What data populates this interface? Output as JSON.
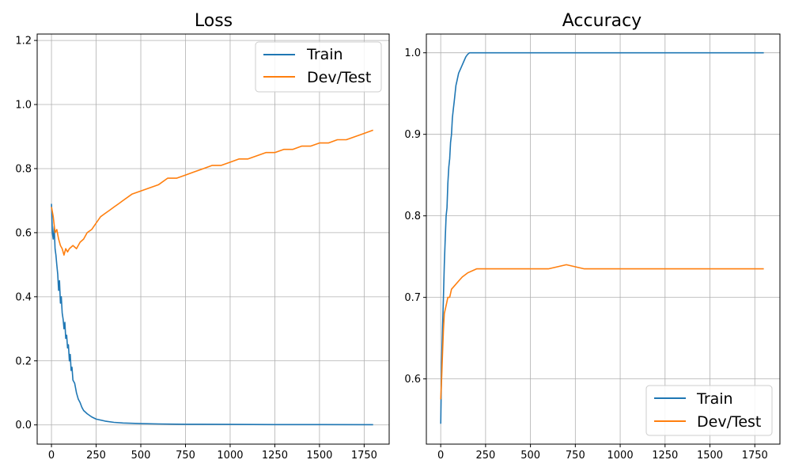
{
  "colors": {
    "train": "#1f77b4",
    "dev_test": "#ff7f0e",
    "grid": "#b0b0b0",
    "frame": "#000000"
  },
  "chart_data": [
    {
      "type": "line",
      "title": "Loss",
      "xlabel": "",
      "ylabel": "",
      "xlim": [
        -80,
        1890
      ],
      "ylim": [
        -0.06,
        1.22
      ],
      "xticks": [
        0,
        250,
        500,
        750,
        1000,
        1250,
        1500,
        1750
      ],
      "xtick_labels": [
        "0",
        "250",
        "500",
        "750",
        "1000",
        "1250",
        "1500",
        "1750"
      ],
      "yticks": [
        0.0,
        0.2,
        0.4,
        0.6,
        0.8,
        1.0,
        1.2
      ],
      "ytick_labels": [
        "0.0",
        "0.2",
        "0.4",
        "0.6",
        "0.8",
        "1.0",
        "1.2"
      ],
      "grid": true,
      "legend_position": "top-right",
      "series": [
        {
          "name": "Train",
          "color": "#1f77b4",
          "points": [
            [
              0,
              0.69
            ],
            [
              5,
              0.6
            ],
            [
              10,
              0.58
            ],
            [
              15,
              0.62
            ],
            [
              20,
              0.55
            ],
            [
              25,
              0.53
            ],
            [
              30,
              0.5
            ],
            [
              35,
              0.47
            ],
            [
              40,
              0.42
            ],
            [
              45,
              0.45
            ],
            [
              50,
              0.38
            ],
            [
              55,
              0.4
            ],
            [
              60,
              0.35
            ],
            [
              65,
              0.33
            ],
            [
              70,
              0.3
            ],
            [
              75,
              0.32
            ],
            [
              80,
              0.27
            ],
            [
              85,
              0.28
            ],
            [
              90,
              0.24
            ],
            [
              95,
              0.25
            ],
            [
              100,
              0.2
            ],
            [
              105,
              0.22
            ],
            [
              110,
              0.17
            ],
            [
              115,
              0.18
            ],
            [
              120,
              0.14
            ],
            [
              130,
              0.13
            ],
            [
              140,
              0.1
            ],
            [
              150,
              0.08
            ],
            [
              160,
              0.07
            ],
            [
              170,
              0.055
            ],
            [
              180,
              0.045
            ],
            [
              200,
              0.035
            ],
            [
              225,
              0.025
            ],
            [
              250,
              0.018
            ],
            [
              300,
              0.012
            ],
            [
              350,
              0.008
            ],
            [
              400,
              0.006
            ],
            [
              500,
              0.004
            ],
            [
              600,
              0.003
            ],
            [
              750,
              0.002
            ],
            [
              1000,
              0.0015
            ],
            [
              1250,
              0.001
            ],
            [
              1500,
              0.001
            ],
            [
              1800,
              0.0008
            ]
          ]
        },
        {
          "name": "Dev/Test",
          "color": "#ff7f0e",
          "points": [
            [
              0,
              0.68
            ],
            [
              10,
              0.65
            ],
            [
              20,
              0.6
            ],
            [
              30,
              0.61
            ],
            [
              40,
              0.58
            ],
            [
              50,
              0.56
            ],
            [
              60,
              0.55
            ],
            [
              70,
              0.53
            ],
            [
              80,
              0.55
            ],
            [
              90,
              0.54
            ],
            [
              100,
              0.55
            ],
            [
              120,
              0.56
            ],
            [
              140,
              0.55
            ],
            [
              160,
              0.57
            ],
            [
              180,
              0.58
            ],
            [
              200,
              0.6
            ],
            [
              225,
              0.61
            ],
            [
              250,
              0.63
            ],
            [
              275,
              0.65
            ],
            [
              300,
              0.66
            ],
            [
              325,
              0.67
            ],
            [
              350,
              0.68
            ],
            [
              375,
              0.69
            ],
            [
              400,
              0.7
            ],
            [
              450,
              0.72
            ],
            [
              500,
              0.73
            ],
            [
              550,
              0.74
            ],
            [
              600,
              0.75
            ],
            [
              650,
              0.77
            ],
            [
              700,
              0.77
            ],
            [
              750,
              0.78
            ],
            [
              800,
              0.79
            ],
            [
              850,
              0.8
            ],
            [
              900,
              0.81
            ],
            [
              950,
              0.81
            ],
            [
              1000,
              0.82
            ],
            [
              1050,
              0.83
            ],
            [
              1100,
              0.83
            ],
            [
              1150,
              0.84
            ],
            [
              1200,
              0.85
            ],
            [
              1250,
              0.85
            ],
            [
              1300,
              0.86
            ],
            [
              1350,
              0.86
            ],
            [
              1400,
              0.87
            ],
            [
              1450,
              0.87
            ],
            [
              1500,
              0.88
            ],
            [
              1550,
              0.88
            ],
            [
              1600,
              0.89
            ],
            [
              1650,
              0.89
            ],
            [
              1700,
              0.9
            ],
            [
              1750,
              0.91
            ],
            [
              1800,
              0.92
            ]
          ]
        }
      ]
    },
    {
      "type": "line",
      "title": "Accuracy",
      "xlabel": "",
      "ylabel": "",
      "xlim": [
        -80,
        1890
      ],
      "ylim": [
        0.52,
        1.023
      ],
      "xticks": [
        0,
        250,
        500,
        750,
        1000,
        1250,
        1500,
        1750
      ],
      "xtick_labels": [
        "0",
        "250",
        "500",
        "750",
        "1000",
        "1250",
        "1500",
        "1750"
      ],
      "yticks": [
        0.6,
        0.7,
        0.8,
        0.9,
        1.0
      ],
      "ytick_labels": [
        "0.6",
        "0.7",
        "0.8",
        "0.9",
        "1.0"
      ],
      "grid": true,
      "legend_position": "bottom-right",
      "series": [
        {
          "name": "Train",
          "color": "#1f77b4",
          "points": [
            [
              0,
              0.545
            ],
            [
              5,
              0.62
            ],
            [
              10,
              0.66
            ],
            [
              15,
              0.7
            ],
            [
              20,
              0.74
            ],
            [
              25,
              0.77
            ],
            [
              30,
              0.8
            ],
            [
              35,
              0.81
            ],
            [
              40,
              0.84
            ],
            [
              45,
              0.86
            ],
            [
              50,
              0.87
            ],
            [
              55,
              0.89
            ],
            [
              60,
              0.9
            ],
            [
              65,
              0.92
            ],
            [
              70,
              0.93
            ],
            [
              75,
              0.94
            ],
            [
              80,
              0.95
            ],
            [
              85,
              0.96
            ],
            [
              90,
              0.965
            ],
            [
              95,
              0.97
            ],
            [
              100,
              0.975
            ],
            [
              110,
              0.98
            ],
            [
              120,
              0.985
            ],
            [
              130,
              0.99
            ],
            [
              140,
              0.995
            ],
            [
              150,
              0.998
            ],
            [
              160,
              1.0
            ],
            [
              200,
              1.0
            ],
            [
              500,
              1.0
            ],
            [
              1000,
              1.0
            ],
            [
              1500,
              1.0
            ],
            [
              1800,
              1.0
            ]
          ]
        },
        {
          "name": "Dev/Test",
          "color": "#ff7f0e",
          "points": [
            [
              0,
              0.575
            ],
            [
              5,
              0.6
            ],
            [
              10,
              0.63
            ],
            [
              15,
              0.66
            ],
            [
              20,
              0.68
            ],
            [
              30,
              0.69
            ],
            [
              40,
              0.7
            ],
            [
              50,
              0.7
            ],
            [
              60,
              0.71
            ],
            [
              80,
              0.715
            ],
            [
              100,
              0.72
            ],
            [
              120,
              0.725
            ],
            [
              150,
              0.73
            ],
            [
              200,
              0.735
            ],
            [
              300,
              0.735
            ],
            [
              400,
              0.735
            ],
            [
              500,
              0.735
            ],
            [
              600,
              0.735
            ],
            [
              700,
              0.74
            ],
            [
              800,
              0.735
            ],
            [
              900,
              0.735
            ],
            [
              1000,
              0.735
            ],
            [
              1100,
              0.735
            ],
            [
              1200,
              0.735
            ],
            [
              1300,
              0.735
            ],
            [
              1400,
              0.735
            ],
            [
              1500,
              0.735
            ],
            [
              1600,
              0.735
            ],
            [
              1700,
              0.735
            ],
            [
              1800,
              0.735
            ]
          ]
        }
      ]
    }
  ]
}
